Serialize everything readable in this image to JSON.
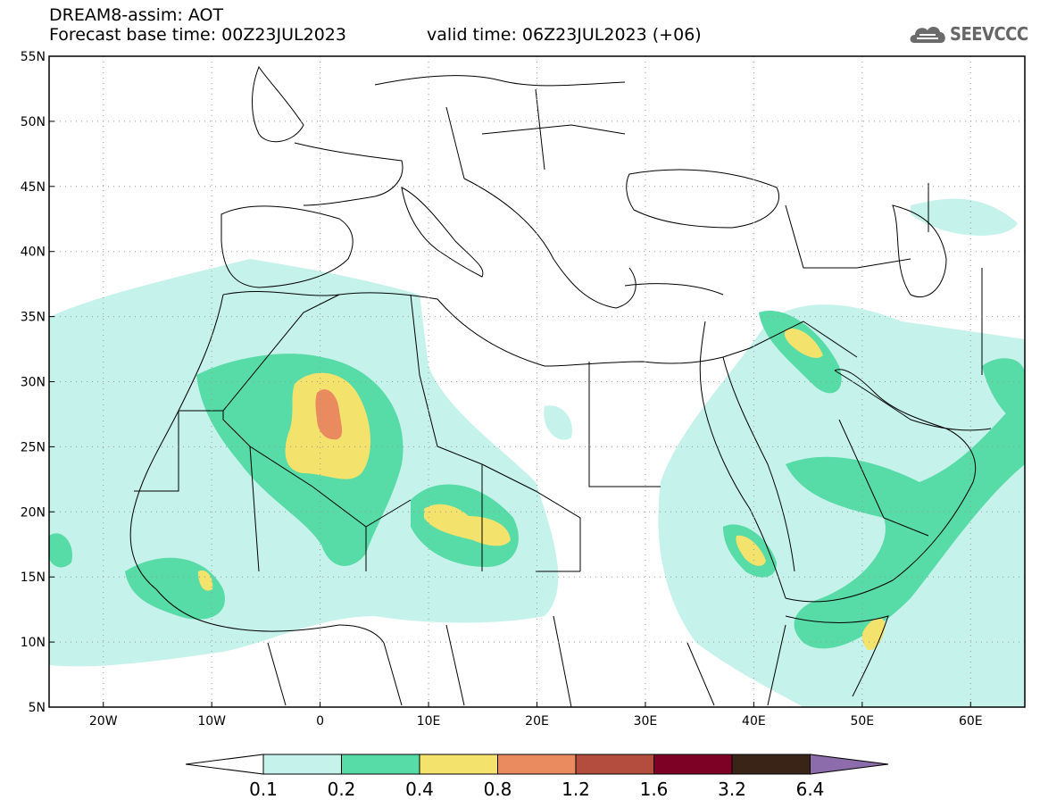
{
  "header": {
    "line1": "DREAM8-assim: AOT",
    "line2": "Forecast base time: 00Z23JUL2023",
    "line3": "valid time: 06Z23JUL2023 (+06)",
    "logo_text": "SEEVCCC"
  },
  "map": {
    "lon_range": [
      -25,
      65
    ],
    "lat_range": [
      5,
      55
    ],
    "lat_ticks": [
      {
        "value": 55,
        "label": "55N"
      },
      {
        "value": 50,
        "label": "50N"
      },
      {
        "value": 45,
        "label": "45N"
      },
      {
        "value": 40,
        "label": "40N"
      },
      {
        "value": 35,
        "label": "35N"
      },
      {
        "value": 30,
        "label": "30N"
      },
      {
        "value": 25,
        "label": "25N"
      },
      {
        "value": 20,
        "label": "20N"
      },
      {
        "value": 15,
        "label": "15N"
      },
      {
        "value": 10,
        "label": "10N"
      },
      {
        "value": 5,
        "label": "5N"
      }
    ],
    "lon_ticks": [
      {
        "value": -20,
        "label": "20W"
      },
      {
        "value": -10,
        "label": "10W"
      },
      {
        "value": 0,
        "label": "0"
      },
      {
        "value": 10,
        "label": "10E"
      },
      {
        "value": 20,
        "label": "20E"
      },
      {
        "value": 30,
        "label": "30E"
      },
      {
        "value": 40,
        "label": "40E"
      },
      {
        "value": 50,
        "label": "50E"
      },
      {
        "value": 60,
        "label": "60E"
      }
    ]
  },
  "colorbar": {
    "levels": [
      "0.1",
      "0.2",
      "0.4",
      "0.8",
      "1.2",
      "1.6",
      "3.2",
      "6.4"
    ],
    "colors": [
      "#c5f2ea",
      "#57dba7",
      "#f3e36d",
      "#e98a5f",
      "#b44d3d",
      "#7d0025",
      "#3a2418",
      "#8c6cab"
    ]
  },
  "colors": {
    "aot_0_1": "#c5f2ea",
    "aot_0_2": "#57dba7",
    "aot_0_4": "#f3e36d",
    "aot_0_8": "#e98a5f"
  }
}
